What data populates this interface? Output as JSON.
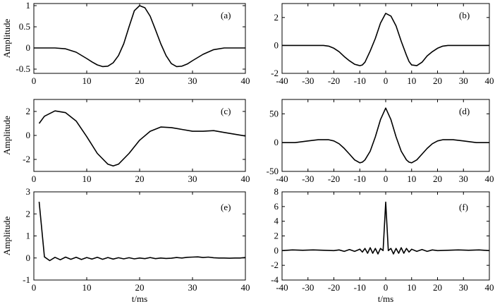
{
  "chart_data": [
    {
      "type": "line",
      "panel_label": "(a)",
      "ylabel": "Amplitude",
      "xlabel": "",
      "xlim": [
        0,
        40
      ],
      "ylim": [
        -0.6,
        1.05
      ],
      "xticks": [
        0,
        10,
        20,
        30,
        40
      ],
      "yticks": [
        -0.5,
        0,
        0.5,
        1
      ],
      "xtick_labels": [
        "0",
        "10",
        "20",
        "30",
        "40"
      ],
      "ytick_labels": [
        "-0.5",
        "0",
        "0.5",
        "1"
      ],
      "series": [
        {
          "x": [
            0,
            4,
            6,
            8,
            10,
            11,
            12,
            13,
            14,
            15,
            16,
            17,
            18,
            19,
            20,
            21,
            22,
            23,
            24,
            25,
            26,
            27,
            28,
            29,
            30,
            32,
            34,
            36,
            38,
            40
          ],
          "y": [
            0,
            0,
            -0.02,
            -0.1,
            -0.25,
            -0.33,
            -0.4,
            -0.44,
            -0.43,
            -0.35,
            -0.18,
            0.1,
            0.5,
            0.88,
            1.0,
            0.95,
            0.75,
            0.43,
            0.1,
            -0.18,
            -0.37,
            -0.44,
            -0.43,
            -0.38,
            -0.3,
            -0.15,
            -0.04,
            0,
            0,
            0
          ]
        }
      ]
    },
    {
      "type": "line",
      "panel_label": "(b)",
      "ylabel": "",
      "xlabel": "",
      "xlim": [
        -40,
        40
      ],
      "ylim": [
        -2,
        3
      ],
      "xticks": [
        -40,
        -30,
        -20,
        -10,
        0,
        10,
        20,
        30,
        40
      ],
      "yticks": [
        -2,
        0,
        2
      ],
      "xtick_labels": [
        "-40",
        "-30",
        "-20",
        "-10",
        "0",
        "10",
        "20",
        "30",
        "40"
      ],
      "ytick_labels": [
        "-2",
        "0",
        "2"
      ],
      "series": [
        {
          "x": [
            -40,
            -30,
            -24,
            -22,
            -20,
            -18,
            -16,
            -14,
            -12,
            -10,
            -9,
            -8,
            -6,
            -4,
            -2,
            0,
            2,
            4,
            6,
            8,
            9,
            10,
            12,
            14,
            16,
            18,
            20,
            22,
            24,
            30,
            40
          ],
          "y": [
            0,
            0,
            0,
            -0.05,
            -0.2,
            -0.45,
            -0.8,
            -1.1,
            -1.35,
            -1.45,
            -1.4,
            -1.2,
            -0.4,
            0.5,
            1.6,
            2.3,
            2.1,
            1.4,
            0.3,
            -0.7,
            -1.15,
            -1.4,
            -1.45,
            -1.2,
            -0.75,
            -0.45,
            -0.2,
            -0.05,
            0,
            0,
            0
          ]
        }
      ]
    },
    {
      "type": "line",
      "panel_label": "(c)",
      "ylabel": "Amplitude",
      "xlabel": "",
      "xlim": [
        0,
        40
      ],
      "ylim": [
        -3,
        3
      ],
      "xticks": [
        0,
        10,
        20,
        30,
        40
      ],
      "yticks": [
        -2,
        0,
        2
      ],
      "xtick_labels": [
        "0",
        "10",
        "20",
        "30",
        "40"
      ],
      "ytick_labels": [
        "-2",
        "0",
        "2"
      ],
      "series": [
        {
          "x": [
            1,
            2,
            4,
            6,
            8,
            10,
            12,
            14,
            15,
            16,
            18,
            20,
            22,
            24,
            26,
            28,
            30,
            32,
            34,
            36,
            38,
            40
          ],
          "y": [
            1.0,
            1.6,
            2.05,
            1.9,
            1.2,
            -0.1,
            -1.5,
            -2.4,
            -2.55,
            -2.4,
            -1.5,
            -0.4,
            0.35,
            0.7,
            0.65,
            0.5,
            0.35,
            0.35,
            0.4,
            0.25,
            0.1,
            -0.05
          ]
        }
      ]
    },
    {
      "type": "line",
      "panel_label": "(d)",
      "ylabel": "",
      "xlabel": "",
      "xlim": [
        -40,
        40
      ],
      "ylim": [
        -50,
        75
      ],
      "xticks": [
        -40,
        -30,
        -20,
        -10,
        0,
        10,
        20,
        30,
        40
      ],
      "yticks": [
        -50,
        0,
        50
      ],
      "xtick_labels": [
        "-40",
        "-30",
        "-20",
        "-10",
        "0",
        "10",
        "20",
        "30",
        "40"
      ],
      "ytick_labels": [
        "-50",
        "0",
        "50"
      ],
      "series": [
        {
          "x": [
            -40,
            -35,
            -30,
            -26,
            -22,
            -20,
            -18,
            -16,
            -14,
            -12,
            -10,
            -9,
            -8,
            -6,
            -4,
            -2,
            0,
            2,
            4,
            6,
            8,
            9,
            10,
            12,
            14,
            16,
            18,
            20,
            22,
            26,
            30,
            35,
            40
          ],
          "y": [
            0,
            0,
            3,
            5,
            5,
            3,
            -2,
            -10,
            -20,
            -30,
            -35,
            -34,
            -30,
            -15,
            10,
            40,
            60,
            40,
            10,
            -15,
            -30,
            -34,
            -35,
            -30,
            -20,
            -10,
            -2,
            3,
            5,
            5,
            3,
            0,
            0
          ]
        }
      ]
    },
    {
      "type": "line",
      "panel_label": "(e)",
      "ylabel": "Amplitude",
      "xlabel": "t/ms",
      "xlim": [
        0,
        40
      ],
      "ylim": [
        -1,
        3
      ],
      "xticks": [
        0,
        10,
        20,
        30,
        40
      ],
      "yticks": [
        -1,
        0,
        1,
        2,
        3
      ],
      "xtick_labels": [
        "0",
        "10",
        "20",
        "30",
        "40"
      ],
      "ytick_labels": [
        "-1",
        "0",
        "1",
        "2",
        "3"
      ],
      "series": [
        {
          "x": [
            1,
            2,
            3,
            4,
            5,
            6,
            7,
            8,
            9,
            10,
            11,
            12,
            13,
            14,
            15,
            16,
            17,
            18,
            19,
            20,
            21,
            22,
            23,
            24,
            25,
            26,
            27,
            28,
            29,
            30,
            31,
            32,
            33,
            34,
            35,
            36,
            37,
            38,
            39,
            40
          ],
          "y": [
            2.55,
            0.05,
            -0.12,
            0.03,
            -0.08,
            0.04,
            -0.06,
            0.03,
            -0.07,
            0.02,
            -0.05,
            0.03,
            -0.06,
            0.02,
            -0.05,
            0.01,
            -0.04,
            0.01,
            -0.04,
            0.0,
            -0.03,
            0.02,
            -0.03,
            0.0,
            -0.02,
            -0.01,
            0.02,
            0.0,
            0.03,
            0.04,
            0.05,
            0.02,
            0.04,
            0.01,
            0.0,
            0.0,
            -0.01,
            0.0,
            0.0,
            0.02
          ]
        }
      ]
    },
    {
      "type": "line",
      "panel_label": "(f)",
      "ylabel": "",
      "xlabel": "t/ms",
      "xlim": [
        -40,
        40
      ],
      "ylim": [
        -4,
        8
      ],
      "xticks": [
        -40,
        -30,
        -20,
        -10,
        0,
        10,
        20,
        30,
        40
      ],
      "yticks": [
        -4,
        -2,
        0,
        2,
        4,
        6,
        8
      ],
      "xtick_labels": [
        "-40",
        "-30",
        "-20",
        "-10",
        "0",
        "10",
        "20",
        "30",
        "40"
      ],
      "ytick_labels": [
        "-4",
        "-2",
        "0",
        "2",
        "4",
        "6",
        "8"
      ],
      "series": [
        {
          "x": [
            -40,
            -36,
            -32,
            -28,
            -24,
            -20,
            -18,
            -16,
            -14,
            -12,
            -10,
            -9,
            -8,
            -7,
            -6,
            -5,
            -4,
            -3,
            -2,
            -1,
            0,
            1,
            2,
            3,
            4,
            5,
            6,
            7,
            8,
            9,
            10,
            12,
            14,
            16,
            18,
            20,
            24,
            28,
            32,
            36,
            40
          ],
          "y": [
            0,
            0.1,
            0.05,
            0.1,
            0.05,
            0,
            0.1,
            -0.1,
            0.15,
            -0.1,
            0.2,
            -0.2,
            0.3,
            -0.35,
            0.4,
            -0.35,
            0.3,
            -0.45,
            0.3,
            0.0,
            6.6,
            0.0,
            0.3,
            -0.45,
            0.3,
            -0.35,
            0.4,
            -0.35,
            0.3,
            -0.2,
            0.2,
            -0.1,
            0.15,
            -0.1,
            0.1,
            0,
            0.05,
            0.1,
            0.05,
            0.1,
            0
          ]
        }
      ]
    }
  ]
}
